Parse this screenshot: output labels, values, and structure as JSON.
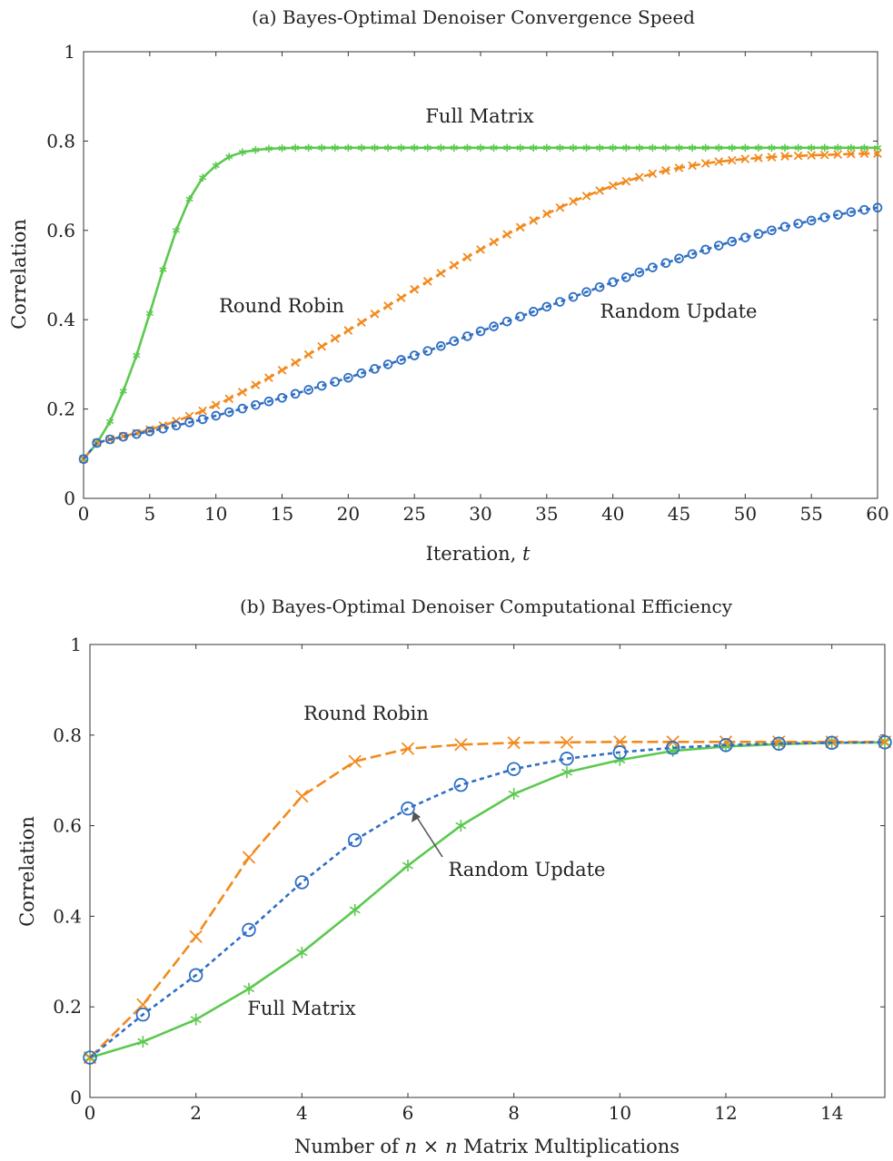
{
  "chart_data": [
    {
      "type": "line",
      "title": "(a) Bayes-Optimal Denoiser Convergence Speed",
      "xlabel": "Iteration, t",
      "ylabel": "Correlation",
      "xlim": [
        0,
        60
      ],
      "ylim": [
        0,
        1
      ],
      "xticks": [
        "0",
        "5",
        "10",
        "15",
        "20",
        "25",
        "30",
        "35",
        "40",
        "45",
        "50",
        "55",
        "60"
      ],
      "yticks": [
        "0",
        "0.2",
        "0.4",
        "0.6",
        "0.8",
        "1"
      ],
      "grid": false,
      "legend": "none",
      "annotations": [
        {
          "text": "Full Matrix",
          "color": "#5bc94e"
        },
        {
          "text": "Round Robin",
          "color": "#f28a1e"
        },
        {
          "text": "Random Update",
          "color": "#2f6fc4"
        }
      ],
      "series": [
        {
          "name": "Full Matrix",
          "color": "#5bc94e",
          "line": "solid",
          "marker": "asterisk",
          "x": [
            0,
            1,
            2,
            3,
            4,
            5,
            6,
            7,
            8,
            9,
            10,
            11,
            12,
            13,
            14,
            15,
            16,
            17,
            18,
            19,
            20,
            21,
            22,
            23,
            24,
            25,
            26,
            27,
            28,
            29,
            30,
            31,
            32,
            33,
            34,
            35,
            36,
            37,
            38,
            39,
            40,
            41,
            42,
            43,
            44,
            45,
            46,
            47,
            48,
            49,
            50,
            51,
            52,
            53,
            54,
            55,
            56,
            57,
            58,
            59,
            60
          ],
          "y": [
            0.088,
            0.123,
            0.172,
            0.24,
            0.32,
            0.414,
            0.512,
            0.6,
            0.67,
            0.718,
            0.745,
            0.765,
            0.775,
            0.78,
            0.783,
            0.784,
            0.785,
            0.785,
            0.785,
            0.785,
            0.785,
            0.785,
            0.785,
            0.785,
            0.785,
            0.785,
            0.785,
            0.785,
            0.785,
            0.785,
            0.785,
            0.785,
            0.785,
            0.785,
            0.785,
            0.785,
            0.785,
            0.785,
            0.785,
            0.785,
            0.785,
            0.785,
            0.785,
            0.785,
            0.785,
            0.785,
            0.785,
            0.785,
            0.785,
            0.785,
            0.785,
            0.785,
            0.785,
            0.785,
            0.785,
            0.785,
            0.785,
            0.785,
            0.785,
            0.785,
            0.785
          ]
        },
        {
          "name": "Round Robin",
          "color": "#f28a1e",
          "line": "dashed",
          "marker": "x",
          "x": [
            0,
            1,
            2,
            3,
            4,
            5,
            6,
            7,
            8,
            9,
            10,
            11,
            12,
            13,
            14,
            15,
            16,
            17,
            18,
            19,
            20,
            21,
            22,
            23,
            24,
            25,
            26,
            27,
            28,
            29,
            30,
            31,
            32,
            33,
            34,
            35,
            36,
            37,
            38,
            39,
            40,
            41,
            42,
            43,
            44,
            45,
            46,
            47,
            48,
            49,
            50,
            51,
            52,
            53,
            54,
            55,
            56,
            57,
            58,
            59,
            60
          ],
          "y": [
            0.088,
            0.124,
            0.132,
            0.139,
            0.146,
            0.154,
            0.163,
            0.173,
            0.184,
            0.196,
            0.209,
            0.223,
            0.238,
            0.254,
            0.27,
            0.287,
            0.304,
            0.322,
            0.34,
            0.358,
            0.376,
            0.394,
            0.413,
            0.431,
            0.449,
            0.468,
            0.486,
            0.504,
            0.522,
            0.54,
            0.557,
            0.574,
            0.591,
            0.607,
            0.622,
            0.637,
            0.651,
            0.665,
            0.677,
            0.689,
            0.7,
            0.71,
            0.719,
            0.727,
            0.734,
            0.74,
            0.745,
            0.75,
            0.754,
            0.757,
            0.76,
            0.762,
            0.764,
            0.766,
            0.767,
            0.768,
            0.769,
            0.77,
            0.771,
            0.772,
            0.772
          ]
        },
        {
          "name": "Random Update",
          "color": "#2f6fc4",
          "line": "dashed",
          "marker": "circle",
          "x": [
            0,
            1,
            2,
            3,
            4,
            5,
            6,
            7,
            8,
            9,
            10,
            11,
            12,
            13,
            14,
            15,
            16,
            17,
            18,
            19,
            20,
            21,
            22,
            23,
            24,
            25,
            26,
            27,
            28,
            29,
            30,
            31,
            32,
            33,
            34,
            35,
            36,
            37,
            38,
            39,
            40,
            41,
            42,
            43,
            44,
            45,
            46,
            47,
            48,
            49,
            50,
            51,
            52,
            53,
            54,
            55,
            56,
            57,
            58,
            59,
            60
          ],
          "y": [
            0.088,
            0.124,
            0.132,
            0.138,
            0.144,
            0.15,
            0.156,
            0.163,
            0.17,
            0.177,
            0.185,
            0.193,
            0.201,
            0.209,
            0.217,
            0.225,
            0.234,
            0.243,
            0.252,
            0.261,
            0.27,
            0.28,
            0.29,
            0.3,
            0.31,
            0.32,
            0.33,
            0.341,
            0.352,
            0.363,
            0.374,
            0.385,
            0.396,
            0.407,
            0.418,
            0.429,
            0.44,
            0.451,
            0.462,
            0.473,
            0.484,
            0.495,
            0.506,
            0.517,
            0.527,
            0.537,
            0.547,
            0.557,
            0.566,
            0.575,
            0.584,
            0.592,
            0.6,
            0.608,
            0.615,
            0.622,
            0.629,
            0.635,
            0.641,
            0.646,
            0.651
          ]
        }
      ]
    },
    {
      "type": "line",
      "title": "(b) Bayes-Optimal Denoiser Computational Efficiency",
      "xlabel": "Number of n × n Matrix Multiplications",
      "ylabel": "Correlation",
      "xlim": [
        0,
        15
      ],
      "ylim": [
        0,
        1
      ],
      "xticks": [
        "0",
        "2",
        "4",
        "6",
        "8",
        "10",
        "12",
        "14"
      ],
      "yticks": [
        "0",
        "0.2",
        "0.4",
        "0.6",
        "0.8",
        "1"
      ],
      "grid": false,
      "legend": "none",
      "annotations": [
        {
          "text": "Round Robin",
          "color": "#f28a1e"
        },
        {
          "text": "Random Update",
          "color": "#2f6fc4",
          "arrow": true
        },
        {
          "text": "Full Matrix",
          "color": "#5bc94e"
        }
      ],
      "series": [
        {
          "name": "Full Matrix",
          "color": "#5bc94e",
          "line": "solid",
          "marker": "asterisk",
          "x": [
            0,
            1,
            2,
            3,
            4,
            5,
            6,
            7,
            8,
            9,
            10,
            11,
            12,
            13,
            14,
            15
          ],
          "y": [
            0.088,
            0.123,
            0.172,
            0.24,
            0.32,
            0.414,
            0.512,
            0.6,
            0.67,
            0.718,
            0.745,
            0.765,
            0.775,
            0.78,
            0.783,
            0.784
          ]
        },
        {
          "name": "Round Robin",
          "color": "#f28a1e",
          "line": "dashed",
          "marker": "x",
          "x": [
            0,
            1,
            2,
            3,
            4,
            5,
            6,
            7,
            8,
            9,
            10,
            11,
            12,
            13,
            14,
            15
          ],
          "y": [
            0.088,
            0.205,
            0.355,
            0.53,
            0.665,
            0.742,
            0.77,
            0.779,
            0.783,
            0.784,
            0.785,
            0.785,
            0.785,
            0.785,
            0.785,
            0.785
          ]
        },
        {
          "name": "Random Update",
          "color": "#2f6fc4",
          "line": "dashed",
          "marker": "circle",
          "x": [
            0,
            1,
            2,
            3,
            4,
            5,
            6,
            7,
            8,
            9,
            10,
            11,
            12,
            13,
            14,
            15
          ],
          "y": [
            0.088,
            0.183,
            0.27,
            0.37,
            0.475,
            0.568,
            0.638,
            0.69,
            0.725,
            0.748,
            0.762,
            0.772,
            0.778,
            0.781,
            0.783,
            0.784
          ]
        }
      ]
    }
  ]
}
